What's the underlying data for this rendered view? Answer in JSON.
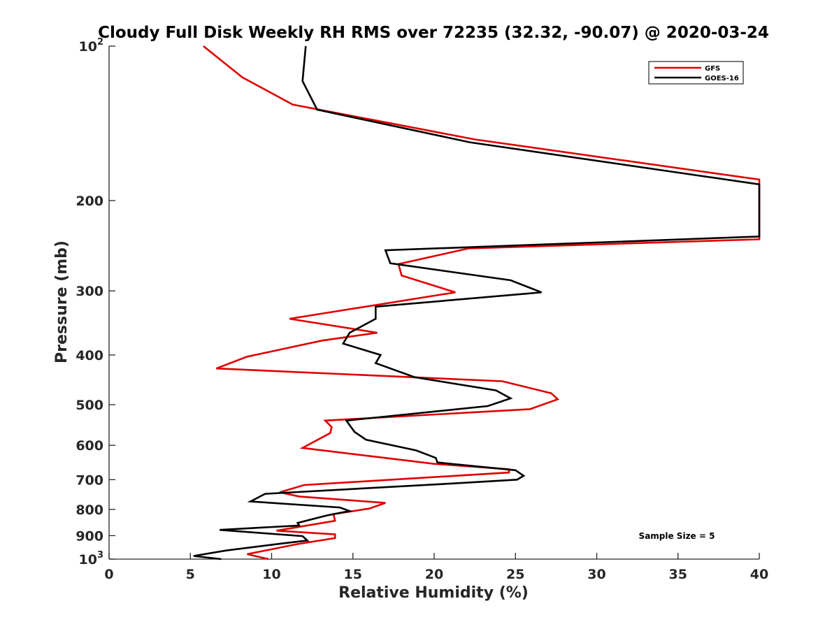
{
  "chart_data": {
    "type": "line",
    "title": "Cloudy Full Disk Weekly RH RMS over 72235 (32.32, -90.07) @ 2020-03-24",
    "xlabel": "Relative Humidity (%)",
    "ylabel": "Pressure (mb)",
    "xlim": [
      0,
      40
    ],
    "ylim": [
      100,
      1000
    ],
    "y_scale": "log",
    "y_reversed": true,
    "x_ticks": [
      {
        "value": 0,
        "label": "0"
      },
      {
        "value": 5,
        "label": "5"
      },
      {
        "value": 10,
        "label": "10"
      },
      {
        "value": 15,
        "label": "15"
      },
      {
        "value": 20,
        "label": "20"
      },
      {
        "value": 25,
        "label": "25"
      },
      {
        "value": 30,
        "label": "30"
      },
      {
        "value": 35,
        "label": "35"
      },
      {
        "value": 40,
        "label": "40"
      }
    ],
    "y_ticks": [
      {
        "value": 100,
        "base": "10",
        "exp": "2"
      },
      {
        "value": 200,
        "label": "200"
      },
      {
        "value": 300,
        "label": "300"
      },
      {
        "value": 400,
        "label": "400"
      },
      {
        "value": 500,
        "label": "500"
      },
      {
        "value": 600,
        "label": "600"
      },
      {
        "value": 700,
        "label": "700"
      },
      {
        "value": 800,
        "label": "800"
      },
      {
        "value": 900,
        "label": "900"
      },
      {
        "value": 1000,
        "base": "10",
        "exp": "3"
      }
    ],
    "legend": {
      "position": "top-right"
    },
    "annotation": "Sample Size = 5",
    "series": [
      {
        "name": "GFS",
        "color": "#e00000",
        "points": [
          [
            5.8,
            100
          ],
          [
            8.2,
            115
          ],
          [
            11.3,
            130
          ],
          [
            22.5,
            152
          ],
          [
            40,
            182
          ],
          [
            40,
            238
          ],
          [
            22.1,
            248
          ],
          [
            17.8,
            266
          ],
          [
            18.0,
            280
          ],
          [
            21.3,
            302
          ],
          [
            11.1,
            340
          ],
          [
            16.5,
            362
          ],
          [
            13.1,
            375
          ],
          [
            8.5,
            403
          ],
          [
            6.6,
            425
          ],
          [
            24.2,
            450
          ],
          [
            27.2,
            475
          ],
          [
            27.6,
            488
          ],
          [
            25.9,
            510
          ],
          [
            13.3,
            537
          ],
          [
            13.7,
            553
          ],
          [
            13.6,
            568
          ],
          [
            11.9,
            607
          ],
          [
            16.8,
            634
          ],
          [
            20.0,
            652
          ],
          [
            24.6,
            668
          ],
          [
            24.6,
            678
          ],
          [
            12.0,
            717
          ],
          [
            10.5,
            741
          ],
          [
            11.7,
            755
          ],
          [
            17.0,
            777
          ],
          [
            16.0,
            797
          ],
          [
            13.8,
            817
          ],
          [
            13.9,
            842
          ],
          [
            10.3,
            880
          ],
          [
            13.9,
            895
          ],
          [
            13.9,
            910
          ],
          [
            11.5,
            936
          ],
          [
            8.5,
            978
          ],
          [
            9.8,
            1000
          ]
        ]
      },
      {
        "name": "GOES-16",
        "color": "#000000",
        "points": [
          [
            12.1,
            100
          ],
          [
            11.9,
            117
          ],
          [
            12.8,
            133
          ],
          [
            22.2,
            154
          ],
          [
            40,
            186
          ],
          [
            40,
            235
          ],
          [
            17.0,
            250
          ],
          [
            17.3,
            265
          ],
          [
            24.7,
            286
          ],
          [
            26.6,
            302
          ],
          [
            16.4,
            322
          ],
          [
            16.4,
            340
          ],
          [
            14.8,
            362
          ],
          [
            14.4,
            380
          ],
          [
            16.7,
            400
          ],
          [
            16.4,
            415
          ],
          [
            18.8,
            442
          ],
          [
            23.8,
            469
          ],
          [
            24.7,
            486
          ],
          [
            23.3,
            503
          ],
          [
            14.6,
            537
          ],
          [
            15.1,
            565
          ],
          [
            15.8,
            585
          ],
          [
            18.9,
            614
          ],
          [
            20.1,
            635
          ],
          [
            20.2,
            648
          ],
          [
            25.0,
            671
          ],
          [
            25.5,
            688
          ],
          [
            25.1,
            700
          ],
          [
            21.2,
            712
          ],
          [
            9.6,
            746
          ],
          [
            8.7,
            772
          ],
          [
            14.2,
            793
          ],
          [
            14.8,
            806
          ],
          [
            13.4,
            822
          ],
          [
            11.6,
            850
          ],
          [
            11.7,
            860
          ],
          [
            6.8,
            877
          ],
          [
            11.9,
            902
          ],
          [
            12.2,
            920
          ],
          [
            10.8,
            931
          ],
          [
            7.2,
            962
          ],
          [
            5.2,
            986
          ],
          [
            6.9,
            1000
          ]
        ]
      }
    ]
  }
}
